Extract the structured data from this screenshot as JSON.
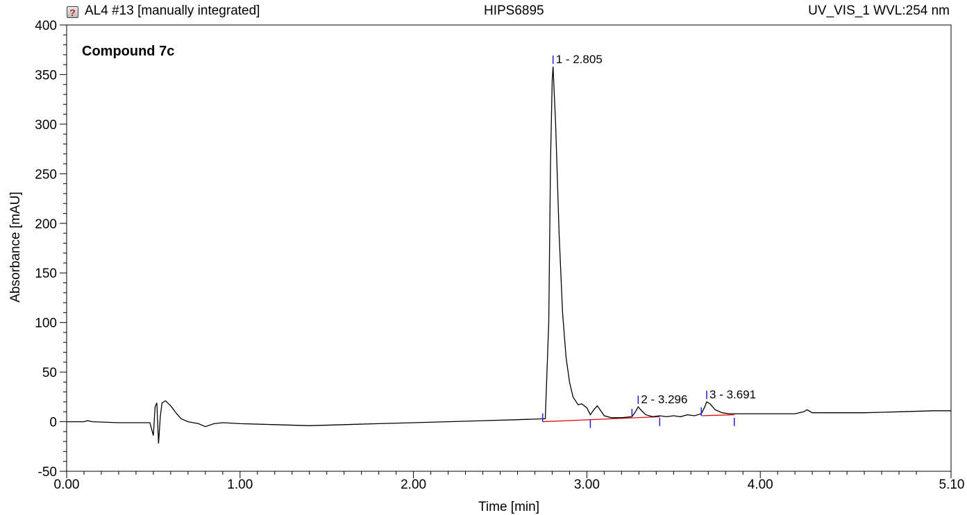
{
  "header": {
    "title_left": "AL4 #13 [manually integrated]",
    "title_center": "HIPS6895",
    "title_right": "UV_VIS_1 WVL:254 nm",
    "status_icon": "question-mark-icon"
  },
  "colors": {
    "trace": "#000000",
    "baseline": "#e01010",
    "peak_marker": "#2020d0",
    "axis": "#000000"
  },
  "chart_data": {
    "type": "line",
    "title": "Compound 7c",
    "xlabel": "Time [min]",
    "ylabel": "Absorbance [mAU]",
    "xlim": [
      0.0,
      5.1
    ],
    "ylim": [
      -50,
      400
    ],
    "x_ticks": [
      "0.00",
      "1.00",
      "2.00",
      "3.00",
      "4.00",
      "5.10"
    ],
    "y_ticks": [
      "-50",
      "0",
      "50",
      "100",
      "150",
      "200",
      "250",
      "300",
      "350",
      "400"
    ],
    "grid": false,
    "series": [
      {
        "x": [
          0.0,
          0.1,
          0.12,
          0.15,
          0.3,
          0.48,
          0.5,
          0.51,
          0.52,
          0.53,
          0.54,
          0.55,
          0.57,
          0.6,
          0.63,
          0.66,
          0.7,
          0.73,
          0.76,
          0.8,
          0.85,
          0.9,
          1.0,
          1.2,
          1.4,
          1.6,
          1.8,
          2.0,
          2.2,
          2.4,
          2.6,
          2.76,
          2.78,
          2.79,
          2.8,
          2.805,
          2.82,
          2.84,
          2.86,
          2.88,
          2.9,
          2.92,
          2.95,
          2.97,
          3.0,
          3.02,
          3.04,
          3.06,
          3.08,
          3.1,
          3.14,
          3.2,
          3.26,
          3.28,
          3.296,
          3.31,
          3.34,
          3.38,
          3.42,
          3.46,
          3.5,
          3.54,
          3.58,
          3.62,
          3.66,
          3.68,
          3.691,
          3.71,
          3.74,
          3.78,
          3.82,
          3.86,
          3.9,
          4.0,
          4.1,
          4.2,
          4.25,
          4.27,
          4.3,
          4.4,
          4.6,
          4.8,
          5.0,
          5.1
        ],
        "y": [
          0,
          0,
          1,
          0,
          -1,
          -1,
          -14,
          15,
          19,
          -22,
          5,
          19,
          21,
          16,
          9,
          3,
          0,
          -1,
          -2,
          -5,
          -2,
          -1,
          -2,
          -3,
          -4,
          -3,
          -2,
          -1,
          0,
          1,
          2,
          3,
          100,
          260,
          345,
          358,
          300,
          190,
          110,
          65,
          40,
          25,
          17,
          18,
          14,
          7,
          12,
          16,
          11,
          6,
          4,
          4,
          5,
          10,
          15,
          12,
          7,
          5,
          6,
          5,
          6,
          5,
          7,
          6,
          8,
          15,
          20,
          18,
          12,
          9,
          8,
          8,
          8,
          8,
          8,
          8,
          10,
          12,
          9,
          9,
          9,
          10,
          11,
          11
        ]
      }
    ],
    "peaks": [
      {
        "label": "1 - 2.805",
        "rt": 2.805,
        "height": 358,
        "start": 2.745,
        "end": 3.02
      },
      {
        "label": "2 - 3.296",
        "rt": 3.296,
        "height": 15,
        "start": 3.26,
        "end": 3.42
      },
      {
        "label": "3 - 3.691",
        "rt": 3.691,
        "height": 20,
        "start": 3.66,
        "end": 3.85
      }
    ],
    "baseline_segments": [
      {
        "x": [
          2.745,
          3.42
        ],
        "y": [
          0,
          5
        ]
      },
      {
        "x": [
          3.66,
          3.85
        ],
        "y": [
          6,
          7
        ]
      }
    ]
  }
}
